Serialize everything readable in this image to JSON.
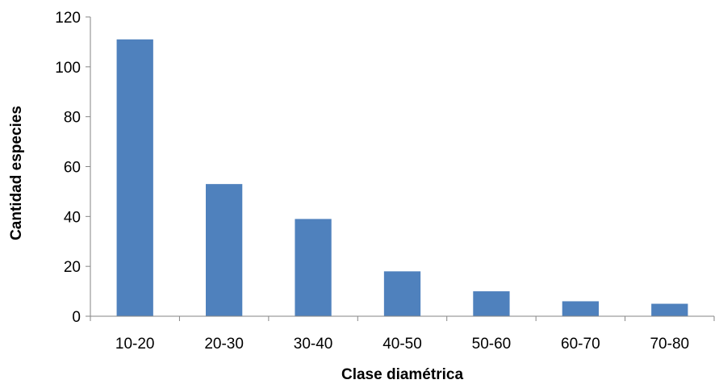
{
  "chart_data": {
    "type": "bar",
    "categories": [
      "10-20",
      "20-30",
      "30-40",
      "40-50",
      "50-60",
      "60-70",
      "70-80"
    ],
    "values": [
      111,
      53,
      39,
      18,
      10,
      6,
      5
    ],
    "title": "",
    "xlabel": "Clase diamétrica",
    "ylabel": "Cantidad especies",
    "ylim": [
      0,
      120
    ],
    "yticks": [
      0,
      20,
      40,
      60,
      80,
      100,
      120
    ],
    "bar_color": "#4F81BD",
    "axis_color": "#868686",
    "grid": false,
    "legend": false
  }
}
